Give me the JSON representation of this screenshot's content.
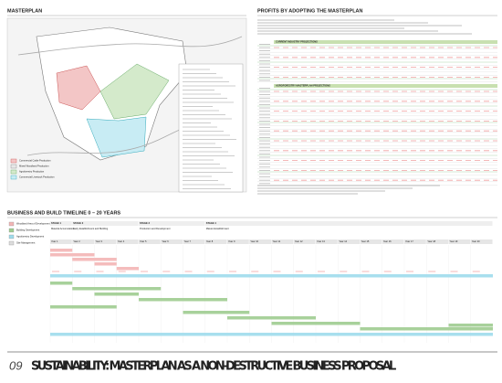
{
  "masterplan": {
    "title": "MASTERPLAN",
    "legend": [
      "Commercial Cattle Production",
      "Mixed Woodland Production",
      "Agroforestry Production",
      "Commercial Livestock Production"
    ]
  },
  "profits": {
    "title": "PROFITS BY ADOPTING THE MASTERPLAN",
    "tables": [
      "CURRENT INDUSTRY PROJECTIONS",
      "AGROFORESTRY MASTERPLAN PROJECTIONS"
    ]
  },
  "timeline": {
    "title": "BUSINESS AND BUILD TIMELINE 0 – 20 YEARS",
    "legend": [
      "Woodland Area of Development",
      "Building Development",
      "Agroforestry Development",
      "Site Management"
    ],
    "stages": [
      {
        "label": "STAGE 1",
        "name": "Material Accumulation"
      },
      {
        "label": "STAGE 2",
        "name": "Early Establishment and Building"
      },
      {
        "label": "STAGE 3",
        "name": "Production and Development"
      },
      {
        "label": "STAGE 4",
        "name": "Mature Establishment"
      }
    ],
    "years": [
      "Year 1",
      "Year 2",
      "Year 3",
      "Year 4",
      "Year 5",
      "Year 6",
      "Year 7",
      "Year 8",
      "Year 9",
      "Year 10",
      "Year 11",
      "Year 12",
      "Year 13",
      "Year 14",
      "Year 15",
      "Year 16",
      "Year 17",
      "Year 18",
      "Year 19",
      "Year 20"
    ]
  },
  "footer": {
    "number": "09",
    "title": "SUSTAINABILITY: MASTERPLAN AS A NON-DESTRUCTIVE BUSINESS PROPOSAL"
  }
}
